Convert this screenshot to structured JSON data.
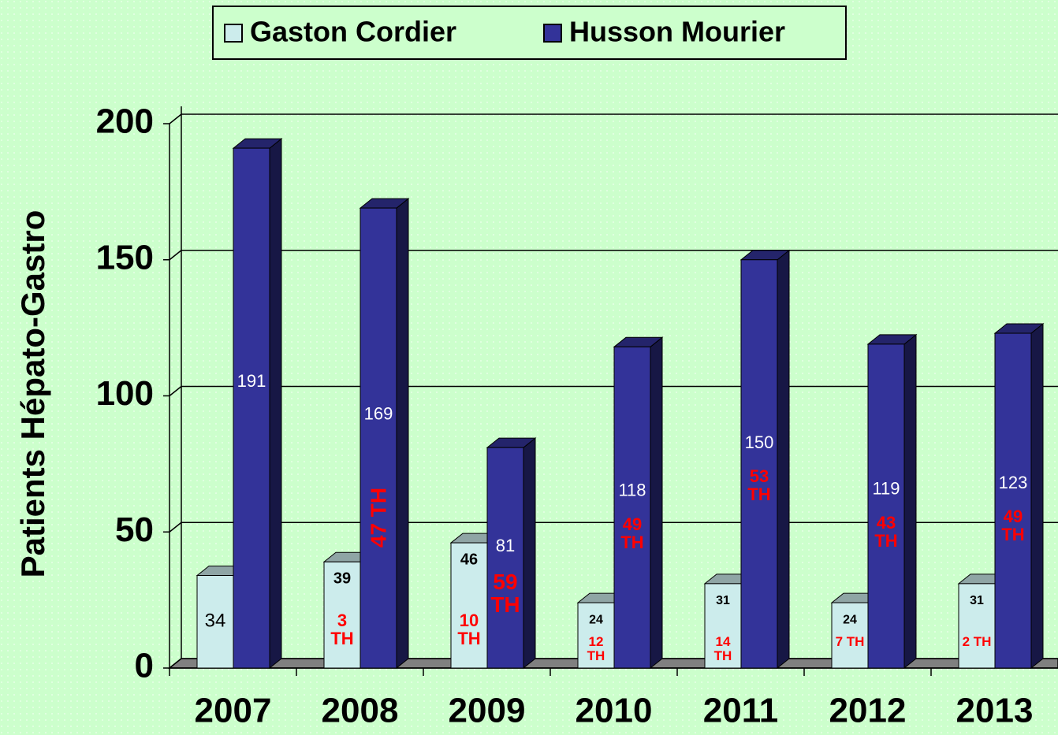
{
  "chart_data": {
    "type": "bar3d",
    "categories": [
      "2007",
      "2008",
      "2009",
      "2010",
      "2011",
      "2012",
      "2013"
    ],
    "series": [
      {
        "name": "Gaston Cordier",
        "color": "#ccecec",
        "values": [
          34,
          39,
          46,
          24,
          31,
          24,
          31
        ],
        "annotations": [
          null,
          "3 TH",
          "10 TH",
          "12 TH",
          "14 TH",
          "7 TH",
          "2 TH"
        ]
      },
      {
        "name": "Husson Mourier",
        "color": "#333399",
        "values": [
          191,
          169,
          81,
          118,
          150,
          119,
          123
        ],
        "annotations": [
          null,
          "47 TH",
          "59 TH",
          "49 TH",
          "53 TH",
          "43 TH",
          "49 TH"
        ]
      }
    ],
    "y_label": "Patients Hépato-Gastro",
    "ylim": [
      0,
      200
    ],
    "yticks": [
      0,
      50,
      100,
      150,
      200
    ],
    "grid": true,
    "legend": "top"
  }
}
